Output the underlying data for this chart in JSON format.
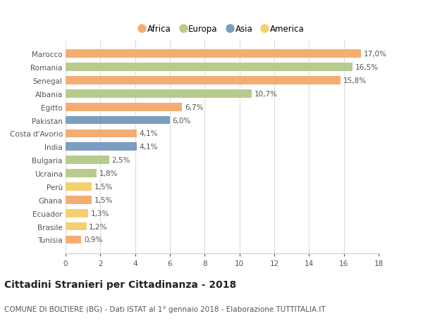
{
  "countries": [
    "Marocco",
    "Romania",
    "Senegal",
    "Albania",
    "Egitto",
    "Pakistan",
    "Costa d'Avorio",
    "India",
    "Bulgaria",
    "Ucraina",
    "Perù",
    "Ghana",
    "Ecuador",
    "Brasile",
    "Tunisia"
  ],
  "values": [
    17.0,
    16.5,
    15.8,
    10.7,
    6.7,
    6.0,
    4.1,
    4.1,
    2.5,
    1.8,
    1.5,
    1.5,
    1.3,
    1.2,
    0.9
  ],
  "labels": [
    "17,0%",
    "16,5%",
    "15,8%",
    "10,7%",
    "6,7%",
    "6,0%",
    "4,1%",
    "4,1%",
    "2,5%",
    "1,8%",
    "1,5%",
    "1,5%",
    "1,3%",
    "1,2%",
    "0,9%"
  ],
  "continents": [
    "Africa",
    "Europa",
    "Africa",
    "Europa",
    "Africa",
    "Asia",
    "Africa",
    "Asia",
    "Europa",
    "Europa",
    "America",
    "Africa",
    "America",
    "America",
    "Africa"
  ],
  "colors": {
    "Africa": "#F2AE72",
    "Europa": "#B8CB8E",
    "Asia": "#7B9EC0",
    "America": "#F5D070"
  },
  "legend_order": [
    "Africa",
    "Europa",
    "Asia",
    "America"
  ],
  "xlim": [
    0,
    18
  ],
  "xticks": [
    0,
    2,
    4,
    6,
    8,
    10,
    12,
    14,
    16,
    18
  ],
  "title": "Cittadini Stranieri per Cittadinanza - 2018",
  "subtitle": "COMUNE DI BOLTIERE (BG) - Dati ISTAT al 1° gennaio 2018 - Elaborazione TUTTITALIA.IT",
  "bg_color": "#ffffff",
  "grid_color": "#dddddd",
  "bar_height": 0.62,
  "label_fontsize": 7.5,
  "tick_fontsize": 7.5,
  "title_fontsize": 10,
  "subtitle_fontsize": 7.5
}
